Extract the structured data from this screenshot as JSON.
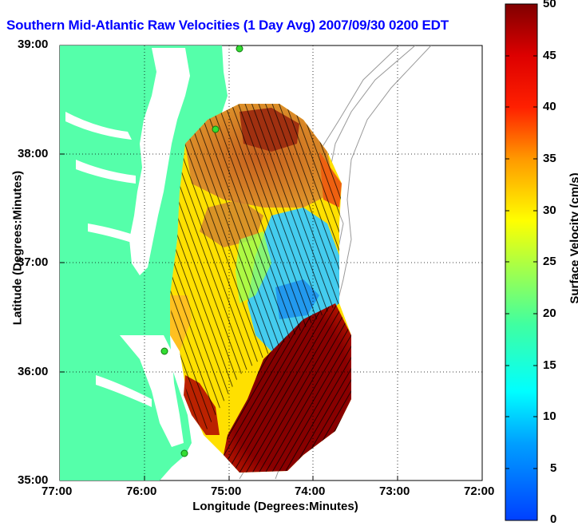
{
  "title": "Southern Mid-Atlantic Raw Velocities (1 Day Avg) 2007/09/30 0200 EDT",
  "axes": {
    "xlabel": "Longitude (Degrees:Minutes)",
    "ylabel": "Latitude (Degrees:Minutes)",
    "x_ticks": [
      "77:00",
      "76:00",
      "75:00",
      "74:00",
      "73:00",
      "72:00"
    ],
    "y_ticks": [
      "39:00",
      "38:00",
      "37:00",
      "36:00",
      "35:00"
    ],
    "xlim": [
      -77,
      -72
    ],
    "ylim": [
      35,
      39
    ],
    "grid": "dotted"
  },
  "colorbar": {
    "label": "Surface Velocity (cm/s)",
    "ticks": [
      "50",
      "45",
      "40",
      "35",
      "30",
      "25",
      "20",
      "15",
      "10",
      "5",
      "0"
    ],
    "range": [
      0,
      50
    ],
    "colormap": "jet"
  },
  "colors": {
    "title": "#0000ff",
    "land": "#55ffaa",
    "water_bay": "#ffffff",
    "bathymetry": "#999999",
    "station": "#33dd33"
  }
}
